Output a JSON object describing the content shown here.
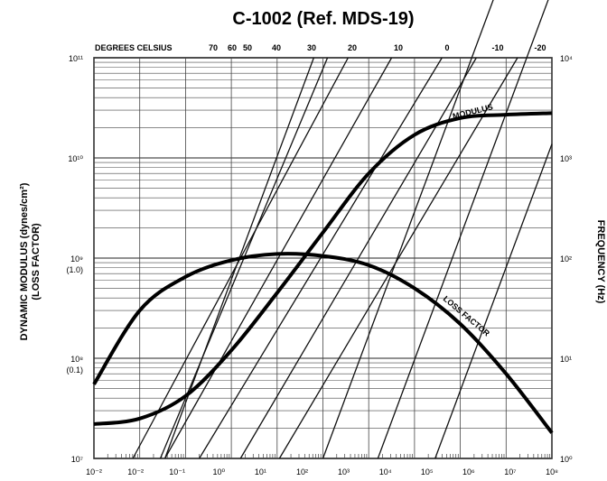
{
  "chart_data": {
    "type": "line",
    "title": "C-1002 (Ref. MDS-19)",
    "xlabel": "",
    "x_scale": "log",
    "xlim": [
      0.01,
      100000000
    ],
    "x_tick_labels": [
      "10⁻²",
      "10⁻²",
      "10⁻¹",
      "10⁰",
      "10¹",
      "10²",
      "10³",
      "10⁴",
      "10⁵",
      "10⁶",
      "10⁷",
      "10⁸"
    ],
    "ylabel_left": [
      "DYNAMIC MODULUS (dynes/cm²)",
      "(LOSS FACTOR)"
    ],
    "y_scale": "log",
    "ylim": [
      10000000,
      100000000000
    ],
    "y_tick_labels_left": [
      {
        "main": "10¹¹",
        "sub": ""
      },
      {
        "main": "10¹⁰",
        "sub": ""
      },
      {
        "main": "10⁹",
        "sub": "(1.0)"
      },
      {
        "main": "10⁸",
        "sub": "(0.1)"
      },
      {
        "main": "10⁷",
        "sub": ""
      }
    ],
    "ylabel_right": "FREQUENCY (Hz)",
    "y_tick_labels_right": [
      "10⁴",
      "10³",
      "10²",
      "10¹",
      "10⁰"
    ],
    "top_axis_label": "DEGREES CELSIUS",
    "temperature_labels": [
      "70",
      "60",
      "50",
      "40",
      "30",
      "20",
      "10",
      "0",
      "-10",
      "-20"
    ],
    "grid": true,
    "series": [
      {
        "name": "MODULUS",
        "x": [
          0.01,
          0.1,
          1,
          10,
          100,
          1000,
          10000,
          100000,
          1000000,
          10000000,
          100000000
        ],
        "y": [
          22000000,
          25000000,
          42000000,
          120000000,
          450000000,
          1800000000,
          7000000000,
          17000000000,
          25000000000,
          27000000000,
          28000000000
        ]
      },
      {
        "name": "LOSS FACTOR",
        "x": [
          0.01,
          0.1,
          1,
          10,
          100,
          1000,
          10000,
          100000,
          1000000,
          10000000,
          100000000
        ],
        "y": [
          0.055,
          0.3,
          0.65,
          0.95,
          1.1,
          1.05,
          0.85,
          0.5,
          0.22,
          0.07,
          0.018
        ]
      }
    ],
    "isotherms": [
      {
        "temp": "70",
        "lo": 0.155,
        "hi": 0.48
      },
      {
        "temp": "60",
        "lo": 0.145,
        "hi": 0.51
      },
      {
        "temp": "50",
        "lo": 0.085,
        "hi": 0.555
      },
      {
        "temp": "40",
        "lo": 0.155,
        "hi": 0.65
      },
      {
        "temp": "30",
        "lo": 0.23,
        "hi": 0.76
      },
      {
        "temp": "20",
        "lo": 0.32,
        "hi": 0.835
      },
      {
        "temp": "10",
        "lo": 0.405,
        "hi": 0.925
      },
      {
        "temp": "0",
        "lo": 0.5,
        "hi": 1.0
      },
      {
        "temp": "-10",
        "lo": 0.62,
        "hi": 1.0
      },
      {
        "temp": "-20",
        "lo": 0.745,
        "hi": 1.0
      }
    ]
  }
}
